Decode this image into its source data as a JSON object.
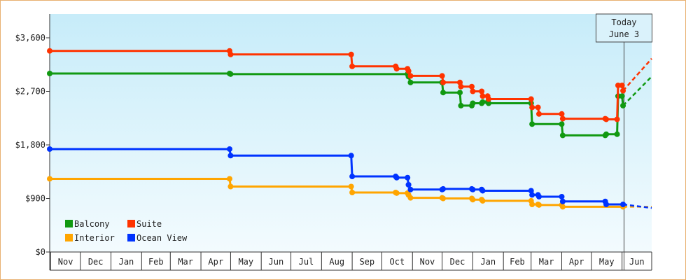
{
  "chart_data": {
    "type": "line",
    "step": true,
    "title": "",
    "xlabel": "",
    "ylabel": "",
    "ylim": [
      0,
      4000
    ],
    "yticks": [
      {
        "value": 0,
        "label": "$0"
      },
      {
        "value": 900,
        "label": "$900"
      },
      {
        "value": 1800,
        "label": "$1,800"
      },
      {
        "value": 2700,
        "label": "$2,700"
      },
      {
        "value": 3600,
        "label": "$3,600"
      }
    ],
    "x_range": [
      "2015-10-31",
      "2017-07-01"
    ],
    "months": [
      {
        "label": "Nov",
        "start": "2015-11-01"
      },
      {
        "label": "Dec",
        "start": "2015-12-01"
      },
      {
        "label": "Jan",
        "start": "2016-01-01"
      },
      {
        "label": "Feb",
        "start": "2016-02-01"
      },
      {
        "label": "Mar",
        "start": "2016-03-01"
      },
      {
        "label": "Apr",
        "start": "2016-04-01"
      },
      {
        "label": "May",
        "start": "2016-05-01"
      },
      {
        "label": "Jun",
        "start": "2016-06-01"
      },
      {
        "label": "Jul",
        "start": "2016-07-01"
      },
      {
        "label": "Aug",
        "start": "2016-08-01"
      },
      {
        "label": "Sep",
        "start": "2016-09-01"
      },
      {
        "label": "Oct",
        "start": "2016-10-01"
      },
      {
        "label": "Nov",
        "start": "2016-11-01"
      },
      {
        "label": "Dec",
        "start": "2016-12-01"
      },
      {
        "label": "Jan",
        "start": "2017-01-01"
      },
      {
        "label": "Feb",
        "start": "2017-02-01"
      },
      {
        "label": "Mar",
        "start": "2017-03-01"
      },
      {
        "label": "Apr",
        "start": "2017-04-01"
      },
      {
        "label": "May",
        "start": "2017-05-01"
      },
      {
        "label": "Jun",
        "start": "2017-06-01"
      }
    ],
    "today": {
      "date": "2017-06-03",
      "line1": "Today",
      "line2": "June 3"
    },
    "legend_placement": "bottom-left",
    "grid": false,
    "series": [
      {
        "name": "Balcony",
        "color": "#119911",
        "points": [
          [
            "2015-10-31",
            3000
          ],
          [
            "2016-04-30",
            3000
          ],
          [
            "2016-05-01",
            2990
          ],
          [
            "2016-08-31",
            2990
          ],
          [
            "2016-10-27",
            2990
          ],
          [
            "2016-10-28",
            2950
          ],
          [
            "2016-10-30",
            2850
          ],
          [
            "2016-12-01",
            2850
          ],
          [
            "2016-12-02",
            2680
          ],
          [
            "2016-12-19",
            2680
          ],
          [
            "2016-12-20",
            2460
          ],
          [
            "2016-12-31",
            2460
          ],
          [
            "2017-01-01",
            2500
          ],
          [
            "2017-01-10",
            2500
          ],
          [
            "2017-01-11",
            2520
          ],
          [
            "2017-01-16",
            2520
          ],
          [
            "2017-01-17",
            2500
          ],
          [
            "2017-03-01",
            2500
          ],
          [
            "2017-03-02",
            2150
          ],
          [
            "2017-04-01",
            2150
          ],
          [
            "2017-04-02",
            1960
          ],
          [
            "2017-05-15",
            1960
          ],
          [
            "2017-05-16",
            1980
          ],
          [
            "2017-05-27",
            1980
          ],
          [
            "2017-05-28",
            2620
          ],
          [
            "2017-06-01",
            2620
          ],
          [
            "2017-06-02",
            2460
          ]
        ],
        "forecast": [
          [
            "2017-07-01",
            2950
          ]
        ]
      },
      {
        "name": "Suite",
        "color": "#ff3300",
        "points": [
          [
            "2015-10-31",
            3380
          ],
          [
            "2016-04-30",
            3380
          ],
          [
            "2016-05-01",
            3320
          ],
          [
            "2016-08-31",
            3320
          ],
          [
            "2016-09-01",
            3120
          ],
          [
            "2016-10-15",
            3120
          ],
          [
            "2016-10-16",
            3080
          ],
          [
            "2016-10-27",
            3080
          ],
          [
            "2016-10-28",
            3040
          ],
          [
            "2016-10-30",
            2960
          ],
          [
            "2016-12-01",
            2960
          ],
          [
            "2016-12-02",
            2850
          ],
          [
            "2016-12-19",
            2850
          ],
          [
            "2016-12-20",
            2780
          ],
          [
            "2016-12-31",
            2780
          ],
          [
            "2017-01-01",
            2700
          ],
          [
            "2017-01-10",
            2700
          ],
          [
            "2017-01-11",
            2620
          ],
          [
            "2017-01-16",
            2620
          ],
          [
            "2017-01-17",
            2570
          ],
          [
            "2017-03-01",
            2570
          ],
          [
            "2017-03-02",
            2430
          ],
          [
            "2017-03-08",
            2430
          ],
          [
            "2017-03-09",
            2320
          ],
          [
            "2017-04-01",
            2320
          ],
          [
            "2017-04-02",
            2240
          ],
          [
            "2017-05-15",
            2240
          ],
          [
            "2017-05-16",
            2230
          ],
          [
            "2017-05-27",
            2230
          ],
          [
            "2017-05-28",
            2800
          ],
          [
            "2017-06-01",
            2800
          ],
          [
            "2017-06-02",
            2710
          ]
        ],
        "forecast": [
          [
            "2017-07-01",
            3250
          ]
        ]
      },
      {
        "name": "Interior",
        "color": "#ffa500",
        "points": [
          [
            "2015-10-31",
            1230
          ],
          [
            "2016-04-30",
            1230
          ],
          [
            "2016-05-01",
            1100
          ],
          [
            "2016-08-31",
            1100
          ],
          [
            "2016-09-01",
            1000
          ],
          [
            "2016-10-15",
            1000
          ],
          [
            "2016-10-16",
            990
          ],
          [
            "2016-10-27",
            990
          ],
          [
            "2016-10-28",
            960
          ],
          [
            "2016-10-30",
            910
          ],
          [
            "2016-12-01",
            910
          ],
          [
            "2016-12-02",
            900
          ],
          [
            "2016-12-31",
            900
          ],
          [
            "2017-01-01",
            880
          ],
          [
            "2017-01-10",
            880
          ],
          [
            "2017-01-11",
            860
          ],
          [
            "2017-03-01",
            860
          ],
          [
            "2017-03-02",
            800
          ],
          [
            "2017-03-08",
            800
          ],
          [
            "2017-03-09",
            790
          ],
          [
            "2017-04-01",
            790
          ],
          [
            "2017-04-02",
            760
          ],
          [
            "2017-06-02",
            760
          ]
        ],
        "forecast": [
          [
            "2017-07-01",
            760
          ]
        ]
      },
      {
        "name": "Ocean View",
        "color": "#0033ff",
        "points": [
          [
            "2015-10-31",
            1730
          ],
          [
            "2016-04-30",
            1730
          ],
          [
            "2016-05-01",
            1620
          ],
          [
            "2016-08-31",
            1620
          ],
          [
            "2016-09-01",
            1270
          ],
          [
            "2016-10-15",
            1270
          ],
          [
            "2016-10-16",
            1250
          ],
          [
            "2016-10-27",
            1250
          ],
          [
            "2016-10-28",
            1130
          ],
          [
            "2016-10-30",
            1050
          ],
          [
            "2016-12-01",
            1050
          ],
          [
            "2016-12-02",
            1060
          ],
          [
            "2016-12-31",
            1060
          ],
          [
            "2017-01-01",
            1050
          ],
          [
            "2017-01-10",
            1050
          ],
          [
            "2017-01-11",
            1030
          ],
          [
            "2017-03-01",
            1030
          ],
          [
            "2017-03-02",
            960
          ],
          [
            "2017-03-08",
            960
          ],
          [
            "2017-03-09",
            930
          ],
          [
            "2017-04-01",
            930
          ],
          [
            "2017-04-02",
            850
          ],
          [
            "2017-05-15",
            850
          ],
          [
            "2017-05-16",
            800
          ],
          [
            "2017-06-02",
            800
          ]
        ],
        "forecast": [
          [
            "2017-07-01",
            740
          ]
        ]
      }
    ],
    "legend": [
      {
        "name": "Balcony",
        "color": "#119911"
      },
      {
        "name": "Suite",
        "color": "#ff3300"
      },
      {
        "name": "Interior",
        "color": "#ffa500"
      },
      {
        "name": "Ocean View",
        "color": "#0033ff"
      }
    ]
  }
}
